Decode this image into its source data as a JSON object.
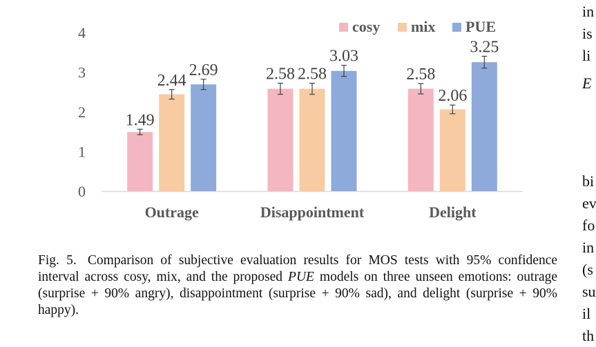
{
  "chart_data": {
    "type": "bar",
    "categories": [
      "Outrage",
      "Disappointment",
      "Delight"
    ],
    "series": [
      {
        "name": "cosy",
        "values": [
          1.49,
          2.58,
          2.58
        ],
        "error": [
          0.07,
          0.14,
          0.13
        ],
        "color": "#F4B6C0"
      },
      {
        "name": "mix",
        "values": [
          2.44,
          2.58,
          2.06
        ],
        "error": [
          0.12,
          0.14,
          0.11
        ],
        "color": "#F8CBA3"
      },
      {
        "name": "PUE",
        "values": [
          2.69,
          3.03,
          3.25
        ],
        "error": [
          0.13,
          0.14,
          0.15
        ],
        "color": "#8EAADB"
      }
    ],
    "data_labels": [
      [
        "1.49",
        "2.58",
        "2.58"
      ],
      [
        "2.44",
        "2.58",
        "2.06"
      ],
      [
        "2.69",
        "3.03",
        "3.25"
      ]
    ],
    "yticks": [
      "0",
      "1",
      "2",
      "3",
      "4"
    ],
    "ylim": [
      0,
      4
    ],
    "grid": false,
    "legend_position": "top-right",
    "title": "",
    "xlabel": "",
    "ylabel": ""
  },
  "caption": {
    "label": "Fig. 5.",
    "text_before_model": "Comparison of subjective evaluation results for MOS tests with 95% confidence interval across cosy, mix, and the proposed",
    "model_name": "PUE",
    "text_after_model": "models on three unseen emotions: outrage (surprise + 90% angry), disappointment (surprise + 90% sad), and delight (surprise + 90% happy)."
  },
  "side_column": {
    "fragments": [
      "in",
      "is",
      "li",
      "E",
      "bi",
      "ev",
      "fo",
      "in",
      "(s",
      "su",
      "il",
      "th"
    ]
  }
}
